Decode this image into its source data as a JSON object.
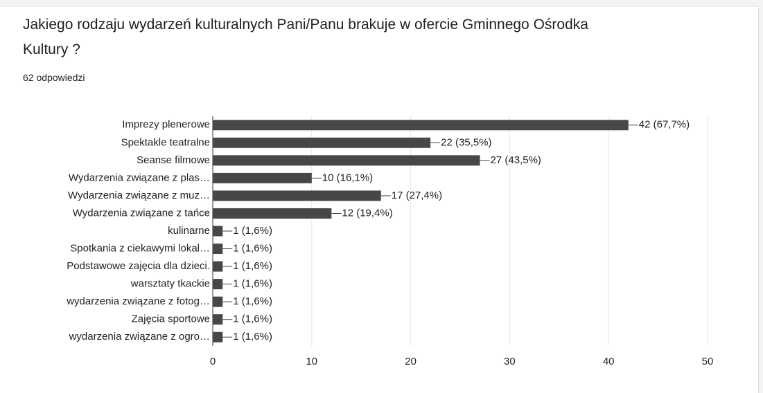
{
  "chart_data": {
    "type": "barh",
    "title": "Jakiego rodzaju wydarzeń kulturalnych  Pani/Panu brakuje w ofercie Gminnego Ośrodka Kultury ?",
    "subtitle": "62 odpowiedzi",
    "categories": [
      "Imprezy plenerowe",
      "Spektakle teatralne",
      "Seanse filmowe",
      "Wydarzenia związane z plas…",
      "Wydarzenia związane z muz…",
      "Wydarzenia związane z tańce",
      "kulinarne",
      "Spotkania z ciekawymi lokal…",
      "Podstawowe zajęcia dla dzieci.",
      "warsztaty tkackie",
      "wydarzenia związane z fotog…",
      "Zajęcia sportowe",
      "wydarzenia związane z ogro…"
    ],
    "values": [
      42,
      22,
      27,
      10,
      17,
      12,
      1,
      1,
      1,
      1,
      1,
      1,
      1
    ],
    "value_labels": [
      "42 (67,7%)",
      "22 (35,5%)",
      "27 (43,5%)",
      "10 (16,1%)",
      "17 (27,4%)",
      "12 (19,4%)",
      "1 (1,6%)",
      "1 (1,6%)",
      "1 (1,6%)",
      "1 (1,6%)",
      "1 (1,6%)",
      "1 (1,6%)",
      "1 (1,6%)"
    ],
    "color": "#474747",
    "xlim": [
      0,
      50
    ],
    "xticks": [
      0,
      10,
      20,
      30,
      40,
      50
    ],
    "grid": true
  }
}
